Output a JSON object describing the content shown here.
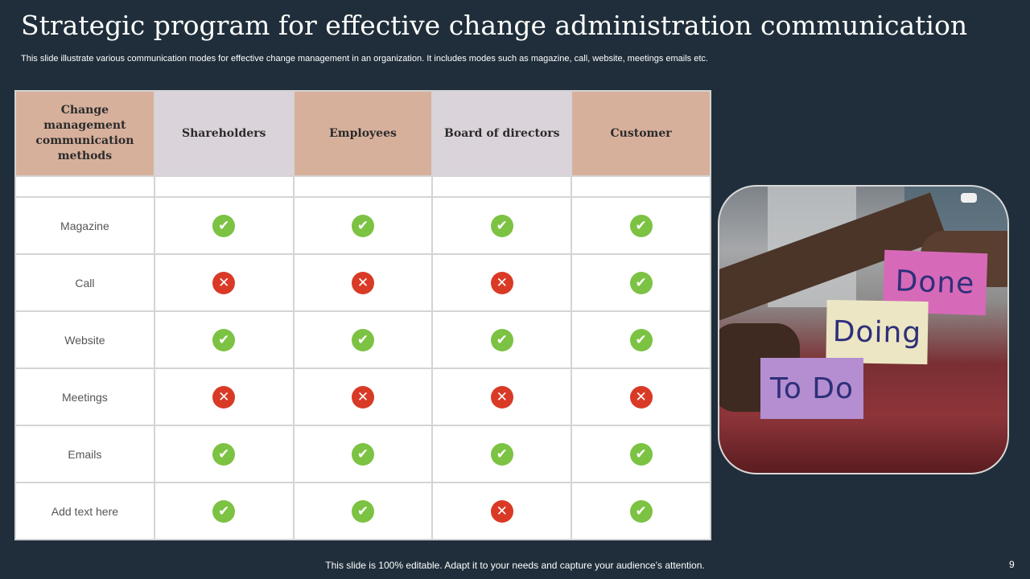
{
  "title": "Strategic program for effective change administration communication",
  "subtitle": "This slide illustrate various communication modes for effective change management in an organization. It includes modes such as magazine, call, website, meetings emails etc.",
  "table": {
    "headers": [
      "Change management communication methods",
      "Shareholders",
      "Employees",
      "Board of directors",
      "Customer"
    ],
    "header_colors": [
      "#d7b09c",
      "#dad3d9",
      "#d7b09c",
      "#dad3d9",
      "#d7b09c"
    ],
    "rows": [
      {
        "label": "Magazine",
        "values": [
          "check",
          "check",
          "check",
          "check"
        ]
      },
      {
        "label": "Call",
        "values": [
          "cross",
          "cross",
          "cross",
          "check"
        ]
      },
      {
        "label": "Website",
        "values": [
          "check",
          "check",
          "check",
          "check"
        ]
      },
      {
        "label": "Meetings",
        "values": [
          "cross",
          "cross",
          "cross",
          "cross"
        ]
      },
      {
        "label": "Emails",
        "values": [
          "check",
          "check",
          "check",
          "check"
        ]
      },
      {
        "label": "Add text here",
        "values": [
          "check",
          "check",
          "cross",
          "check"
        ]
      }
    ]
  },
  "icons": {
    "check": "✔",
    "cross": "✕",
    "check_color": "#7cc243",
    "cross_color": "#d93a26"
  },
  "photo": {
    "notes": [
      "Done",
      "Doing",
      "To Do"
    ]
  },
  "footer": "This slide is 100% editable. Adapt it to your needs and capture your audience’s attention.",
  "page_number": "9"
}
